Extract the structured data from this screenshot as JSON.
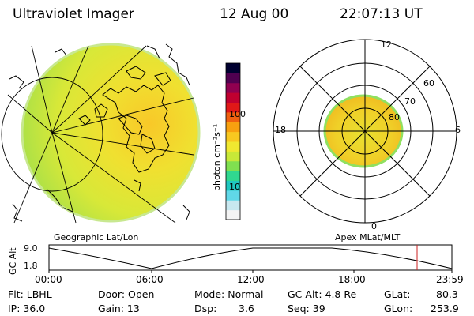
{
  "header": {
    "instrument": "Ultraviolet Imager",
    "date": "12 Aug 00",
    "time": "22:07:13 UT"
  },
  "colorbar": {
    "unit_label": "photon cm⁻²s⁻¹",
    "ticks": [
      {
        "label": "100",
        "value": 100
      },
      {
        "label": "10",
        "value": 10
      }
    ],
    "colors": [
      "#f4f4f4",
      "#c8e8f0",
      "#60d8e8",
      "#20c8c0",
      "#30d890",
      "#80e050",
      "#c8e838",
      "#f0e830",
      "#f8c820",
      "#f8a010",
      "#f06010",
      "#e01818",
      "#c00030",
      "#900050",
      "#500050",
      "#000030"
    ]
  },
  "geo_panel": {
    "label": "Geographic Lat/Lon"
  },
  "polar_panel": {
    "label": "Apex MLat/MLT",
    "mlt_labels": {
      "top": "12",
      "bottom": "0",
      "left": "18",
      "right": "6"
    },
    "lat_labels": [
      "60",
      "70",
      "80"
    ]
  },
  "timeline": {
    "y_axis_label": "GC Alt",
    "y_ticks": [
      "9.0",
      "1.8"
    ],
    "x_ticks": [
      "00:00",
      "06:00",
      "12:00",
      "18:00",
      "23:59"
    ],
    "marker_color": "#cc2020"
  },
  "info": {
    "filter": "Flt: LBHL",
    "ip": "IP: 36.0",
    "door": "Door: Open",
    "gain": "Gain: 13",
    "mode": "Mode: Normal",
    "dsp_label": "Dsp:",
    "dsp_value": "3.6",
    "gc_alt": "GC Alt: 4.8 Re",
    "seq": "Seq: 39",
    "glat_label": "GLat:",
    "glat_value": "80.3",
    "glon_label": "GLon:",
    "glon_value": "253.9"
  }
}
